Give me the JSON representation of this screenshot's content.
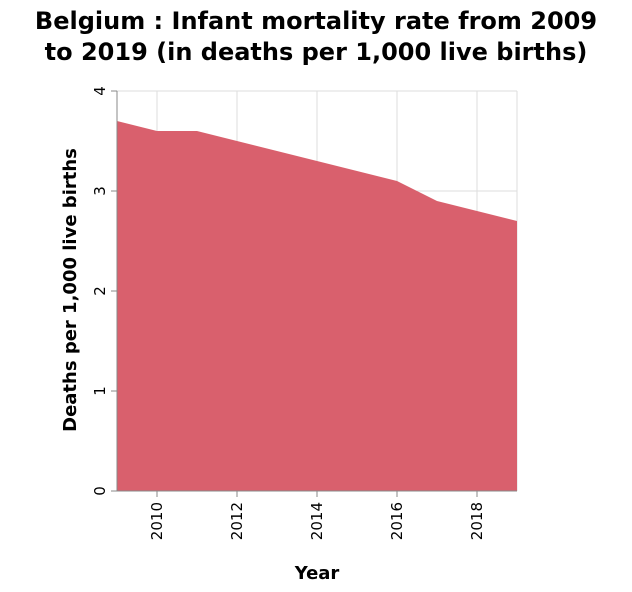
{
  "chart_data": {
    "type": "area",
    "title_lines": [
      "Belgium : Infant mortality rate from 2009",
      "to 2019 (in deaths per 1,000 live births)"
    ],
    "xlabel": "Year",
    "ylabel": "Deaths per 1,000 live births",
    "x": [
      2009,
      2010,
      2011,
      2012,
      2013,
      2014,
      2015,
      2016,
      2017,
      2018,
      2019
    ],
    "series": [
      {
        "values": [
          3.7,
          3.6,
          3.6,
          3.5,
          3.4,
          3.3,
          3.2,
          3.1,
          2.9,
          2.8,
          2.7
        ]
      }
    ],
    "xlim": [
      2009,
      2019
    ],
    "ylim": [
      0,
      4
    ],
    "xticks": [
      "2010",
      "2012",
      "2014",
      "2016",
      "2018"
    ],
    "yticks": [
      "0",
      "1",
      "2",
      "3",
      "4"
    ],
    "grid": true,
    "colors": {
      "fill": "#d9606d",
      "grid": "#dddddd",
      "axis": "#888888"
    }
  }
}
